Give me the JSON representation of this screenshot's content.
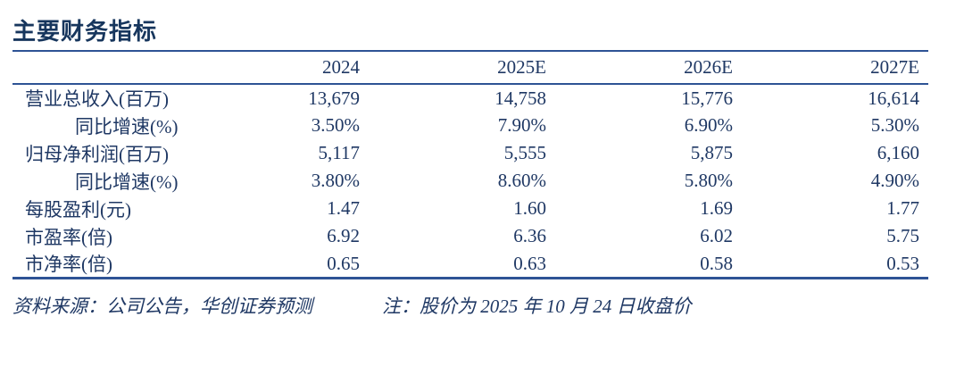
{
  "title": "主要财务指标",
  "colors": {
    "text": "#1f3864",
    "title": "#17365d",
    "rule": "#2e5395"
  },
  "table": {
    "columns": [
      "2024",
      "2025E",
      "2026E",
      "2027E"
    ],
    "rows": [
      {
        "label": "营业总收入(百万)",
        "indent": false,
        "values": [
          "13,679",
          "14,758",
          "15,776",
          "16,614"
        ]
      },
      {
        "label": "同比增速(%)",
        "indent": true,
        "values": [
          "3.50%",
          "7.90%",
          "6.90%",
          "5.30%"
        ]
      },
      {
        "label": "归母净利润(百万)",
        "indent": false,
        "values": [
          "5,117",
          "5,555",
          "5,875",
          "6,160"
        ]
      },
      {
        "label": "同比增速(%)",
        "indent": true,
        "values": [
          "3.80%",
          "8.60%",
          "5.80%",
          "4.90%"
        ]
      },
      {
        "label": "每股盈利(元)",
        "indent": false,
        "values": [
          "1.47",
          "1.60",
          "1.69",
          "1.77"
        ]
      },
      {
        "label": "市盈率(倍)",
        "indent": false,
        "values": [
          "6.92",
          "6.36",
          "6.02",
          "5.75"
        ]
      },
      {
        "label": "市净率(倍)",
        "indent": false,
        "values": [
          "0.65",
          "0.63",
          "0.58",
          "0.53"
        ]
      }
    ]
  },
  "footer": {
    "source": "资料来源：公司公告，华创证券预测",
    "note": "注：股价为 2025 年 10 月 24 日收盘价"
  }
}
